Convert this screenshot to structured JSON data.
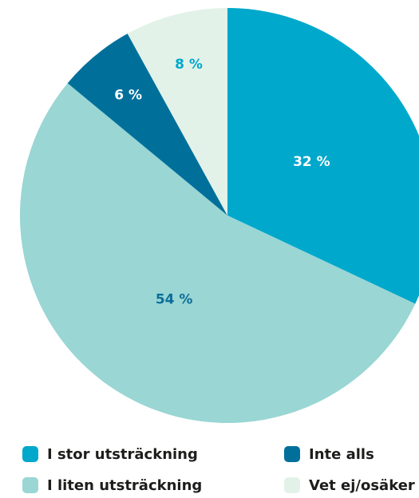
{
  "chart_data": {
    "type": "pie",
    "categories": [
      "I stor utsträckning",
      "I liten utsträckning",
      "Inte alls",
      "Vet ej/osäker"
    ],
    "values": [
      32,
      54,
      6,
      8
    ],
    "value_labels": [
      "32 %",
      "54 %",
      "6 %",
      "8 %"
    ],
    "colors": [
      "#00a8cc",
      "#99d6d4",
      "#00709b",
      "#e2f2e9"
    ],
    "label_colors": [
      "#ffffff",
      "#0b6e99",
      "#ffffff",
      "#00a8cc"
    ]
  }
}
